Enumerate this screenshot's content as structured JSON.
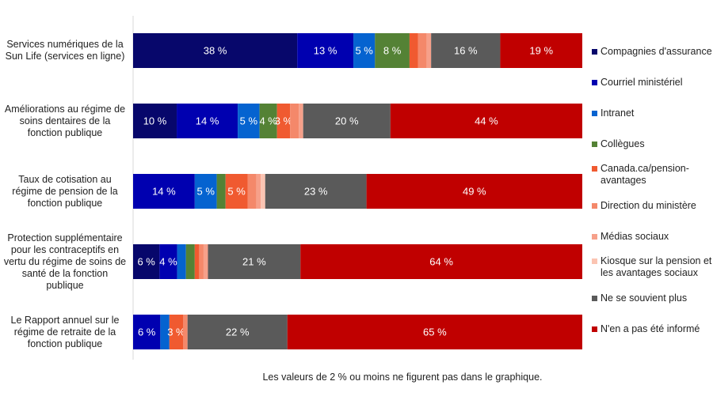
{
  "chart_data": {
    "type": "bar",
    "orientation": "horizontal",
    "stacked": true,
    "unit": "%",
    "categories": [
      "Services numériques de la Sun Life (services en ligne)",
      "Améliorations au régime de soins dentaires de la fonction publique",
      "Taux de cotisation au régime de pension de la fonction publique",
      "Protection supplémentaire pour les contraceptifs en vertu du régime de soins de santé de la fonction publique",
      "Le Rapport annuel sur le régime de retraite de la fonction publique"
    ],
    "series": [
      {
        "name": "Compagnies d'assurance",
        "color": "#07076b",
        "values": [
          38,
          10,
          0,
          6,
          0
        ]
      },
      {
        "name": "Courriel ministériel",
        "color": "#0000b0",
        "values": [
          13,
          14,
          14,
          4,
          6
        ]
      },
      {
        "name": "Intranet",
        "color": "#0563d0",
        "values": [
          5,
          5,
          5,
          2,
          2
        ]
      },
      {
        "name": "Collègues",
        "color": "#548235",
        "values": [
          8,
          4,
          2,
          2,
          0
        ]
      },
      {
        "name": "Canada.ca/pension-avantages",
        "color": "#f05a30",
        "values": [
          2,
          3,
          5,
          1,
          3
        ]
      },
      {
        "name": "Direction du ministère",
        "color": "#f4886a",
        "values": [
          2,
          2,
          2,
          1,
          1
        ]
      },
      {
        "name": "Médias sociaux",
        "color": "#f6a08a",
        "values": [
          1,
          1,
          1,
          1,
          0
        ]
      },
      {
        "name": "Kiosque sur la pension et les avantages sociaux",
        "color": "#fbc4b2",
        "values": [
          0,
          0,
          1,
          0,
          0
        ]
      },
      {
        "name": "Ne se souvient plus",
        "color": "#5a5a5a",
        "values": [
          16,
          20,
          23,
          21,
          22
        ]
      },
      {
        "name": "N'en a pas été informé",
        "color": "#c00000",
        "values": [
          19,
          44,
          49,
          64,
          65
        ]
      }
    ],
    "legend_position": "right",
    "grid": false,
    "label_threshold_note": "Les valeurs de 2 % ou moins ne figurent pas dans le graphique."
  }
}
